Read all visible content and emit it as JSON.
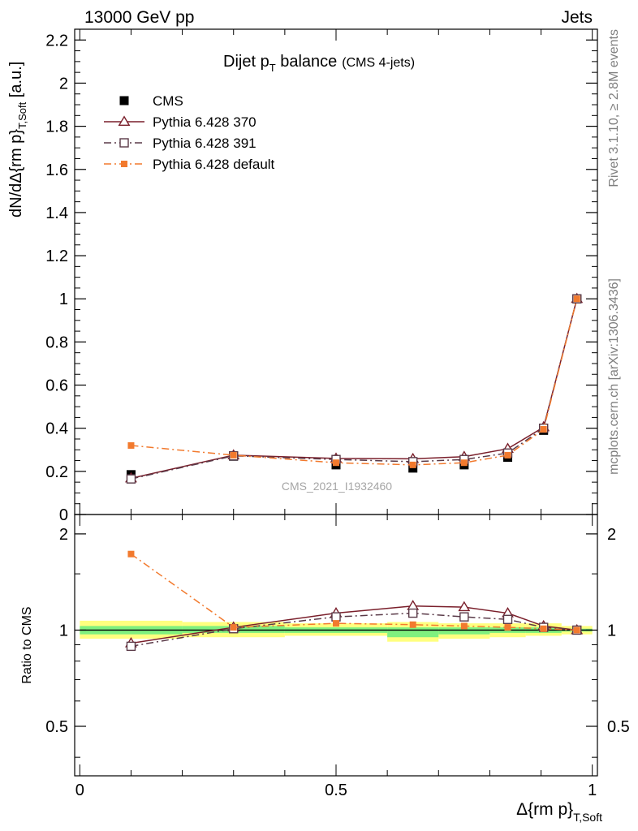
{
  "header": {
    "left": "13000 GeV pp",
    "right": "Jets"
  },
  "side_labels": {
    "rivet": "Rivet 3.1.10, ≥ 2.8M events",
    "mcplots": "mcplots.cern.ch [arXiv:1306.3436]"
  },
  "watermark": "CMS_2021_I1932460",
  "chart_data": [
    {
      "type": "line",
      "title_main": "Dijet p",
      "title_sub": "T",
      "title_rest": " balance",
      "title_note": "(CMS 4-jets)",
      "ylabel_main": "dN/dΔ{rm p}",
      "ylabel_sub": "T,Soft",
      "ylabel_unit": " [a.u.]",
      "ylim": [
        0,
        2.25
      ],
      "xlim": [
        -0.01,
        1.01
      ],
      "yticks": [
        "0",
        "0.2",
        "0.4",
        "0.6",
        "0.8",
        "1",
        "1.2",
        "1.4",
        "1.6",
        "1.8",
        "2",
        "2.2"
      ],
      "ytick_values": [
        0,
        0.2,
        0.4,
        0.6,
        0.8,
        1,
        1.2,
        1.4,
        1.6,
        1.8,
        2,
        2.2
      ],
      "legend_position": "top-left",
      "x": [
        0.1,
        0.3,
        0.5,
        0.65,
        0.75,
        0.835,
        0.905,
        0.97
      ],
      "series": [
        {
          "name": "CMS",
          "color": "#000000",
          "marker": "filled-square",
          "line": "none",
          "values": [
            0.185,
            0.27,
            0.23,
            0.215,
            0.23,
            0.265,
            0.39,
            1.0
          ]
        },
        {
          "name": "Pythia 6.428 370",
          "color": "#7a1f2b",
          "marker": "open-triangle",
          "line": "solid",
          "values": [
            0.168,
            0.275,
            0.26,
            0.258,
            0.268,
            0.305,
            0.405,
            1.0
          ]
        },
        {
          "name": "Pythia 6.428 391",
          "color": "#5a3a48",
          "marker": "open-square",
          "line": "dashdot",
          "values": [
            0.165,
            0.272,
            0.255,
            0.245,
            0.255,
            0.285,
            0.4,
            1.0
          ]
        },
        {
          "name": "Pythia 6.428 default",
          "color": "#f27a2e",
          "marker": "filled-square",
          "line": "dashdot",
          "values": [
            0.32,
            0.275,
            0.24,
            0.23,
            0.24,
            0.275,
            0.395,
            1.0
          ]
        }
      ]
    },
    {
      "type": "line",
      "ylabel": "Ratio to CMS",
      "xlabel_main": "Δ{rm p}",
      "xlabel_sub": "T,Soft",
      "ylim": [
        0.35,
        2.3
      ],
      "log_scale": true,
      "yticks": [
        "0.5",
        "1",
        "2"
      ],
      "ytick_values": [
        0.5,
        1,
        2
      ],
      "xticks": [
        "0",
        "0.5",
        "1"
      ],
      "xtick_values": [
        0,
        0.5,
        1
      ],
      "x": [
        0.1,
        0.3,
        0.5,
        0.65,
        0.75,
        0.835,
        0.905,
        0.97
      ],
      "reference": 1,
      "bands": {
        "inner_color": "#7ff07f",
        "outer_color": "#ffff7f",
        "bins": [
          {
            "x0": 0.0,
            "x1": 0.2,
            "inner": [
              0.97,
              1.03
            ],
            "outer": [
              0.94,
              1.07
            ]
          },
          {
            "x0": 0.2,
            "x1": 0.4,
            "inner": [
              0.98,
              1.03
            ],
            "outer": [
              0.95,
              1.06
            ]
          },
          {
            "x0": 0.4,
            "x1": 0.6,
            "inner": [
              0.98,
              1.02
            ],
            "outer": [
              0.96,
              1.05
            ]
          },
          {
            "x0": 0.6,
            "x1": 0.7,
            "inner": [
              0.95,
              1.02
            ],
            "outer": [
              0.92,
              1.06
            ]
          },
          {
            "x0": 0.7,
            "x1": 0.8,
            "inner": [
              0.97,
              1.02
            ],
            "outer": [
              0.94,
              1.05
            ]
          },
          {
            "x0": 0.8,
            "x1": 0.87,
            "inner": [
              0.98,
              1.02
            ],
            "outer": [
              0.95,
              1.05
            ]
          },
          {
            "x0": 0.87,
            "x1": 0.94,
            "inner": [
              0.98,
              1.02
            ],
            "outer": [
              0.96,
              1.05
            ]
          },
          {
            "x0": 0.94,
            "x1": 1.0,
            "inner": [
              0.99,
              1.01
            ],
            "outer": [
              0.97,
              1.03
            ]
          }
        ]
      },
      "series": [
        {
          "name": "Pythia 6.428 370",
          "color": "#7a1f2b",
          "marker": "open-triangle",
          "line": "solid",
          "values": [
            0.91,
            1.02,
            1.13,
            1.19,
            1.18,
            1.13,
            1.03,
            1.0
          ]
        },
        {
          "name": "Pythia 6.428 391",
          "color": "#5a3a48",
          "marker": "open-square",
          "line": "dashdot",
          "values": [
            0.89,
            1.01,
            1.1,
            1.13,
            1.1,
            1.08,
            1.02,
            1.0
          ]
        },
        {
          "name": "Pythia 6.428 default",
          "color": "#f27a2e",
          "marker": "filled-square",
          "line": "dashdot",
          "values": [
            1.73,
            1.02,
            1.05,
            1.04,
            1.03,
            1.02,
            1.01,
            1.0
          ]
        }
      ]
    }
  ]
}
